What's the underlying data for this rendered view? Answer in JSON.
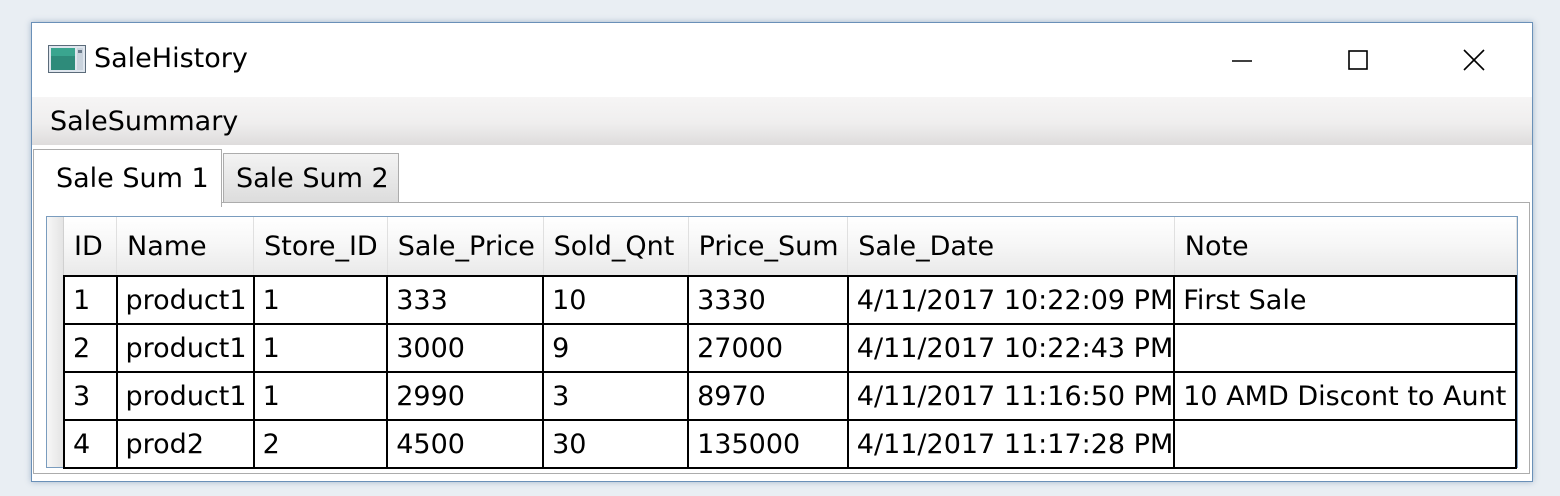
{
  "window": {
    "title": "SaleHistory"
  },
  "menu": {
    "items": [
      "SaleSummary"
    ]
  },
  "tabs": [
    {
      "label": "Sale Sum 1",
      "active": true
    },
    {
      "label": "Sale Sum 2",
      "active": false
    }
  ],
  "grid": {
    "columns": [
      "ID",
      "Name",
      "Store_ID",
      "Sale_Price",
      "Sold_Qnt",
      "Price_Sum",
      "Sale_Date",
      "Note"
    ],
    "rows": [
      [
        "1",
        "product1",
        "1",
        "333",
        "10",
        "3330",
        "4/11/2017 10:22:09 PM",
        "First Sale"
      ],
      [
        "2",
        "product1",
        "1",
        "3000",
        "9",
        "27000",
        "4/11/2017 10:22:43 PM",
        ""
      ],
      [
        "3",
        "product1",
        "1",
        "2990",
        "3",
        "8970",
        "4/11/2017 11:16:50 PM",
        "10 AMD Discont to Aunt"
      ],
      [
        "4",
        "prod2",
        "2",
        "4500",
        "30",
        "135000",
        "4/11/2017 11:17:28 PM",
        ""
      ]
    ]
  },
  "colors": {
    "window_border": "#6a90b8",
    "cell_border": "#000000",
    "menu_bg": "#efeeee"
  },
  "icons": {
    "app": "app-window-icon",
    "minimize": "minimize-icon",
    "maximize": "maximize-icon",
    "close": "close-icon"
  }
}
